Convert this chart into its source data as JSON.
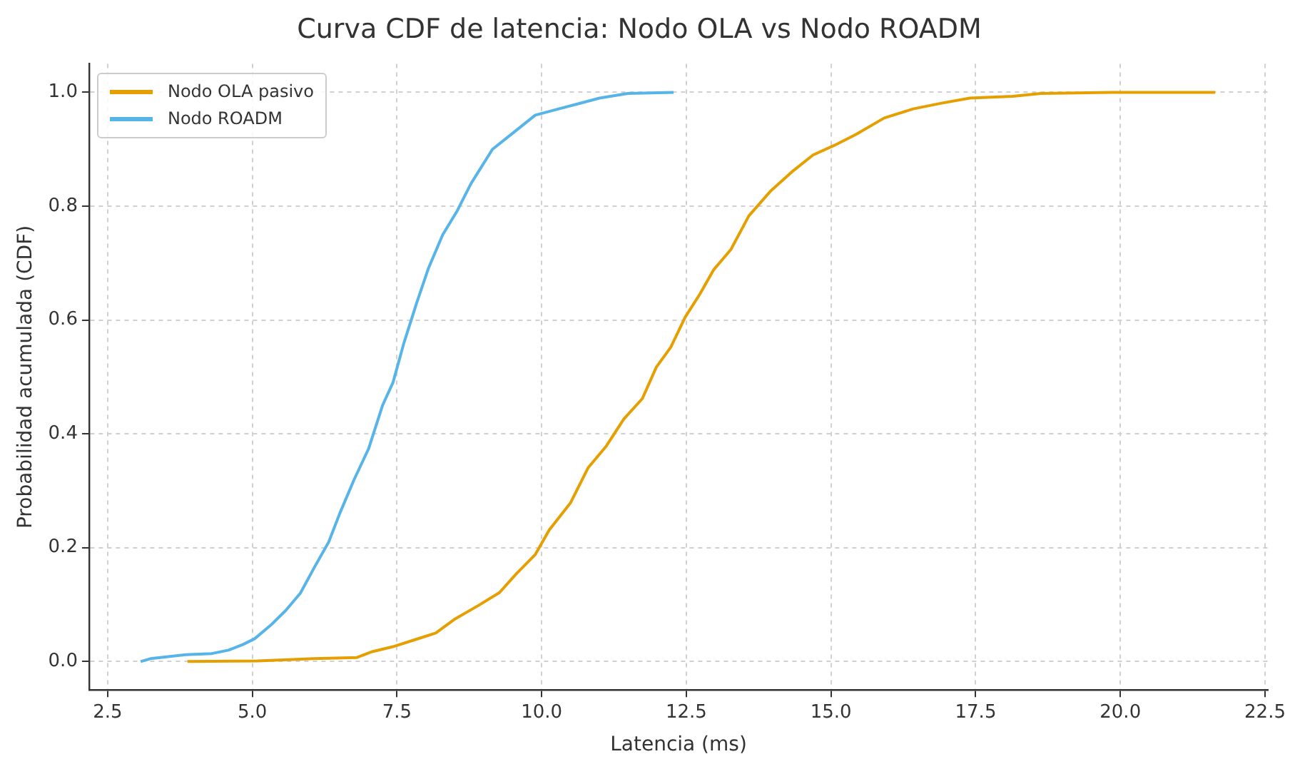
{
  "chart_data": {
    "type": "line",
    "title": "Curva CDF de latencia: Nodo OLA vs Nodo ROADM",
    "xlabel": "Latencia (ms)",
    "ylabel": "Probabilidad acumulada (CDF)",
    "xlim": [
      2.18,
      22.55
    ],
    "ylim": [
      -0.05,
      1.05
    ],
    "xticks": [
      {
        "value": 2.5,
        "label": "2.5"
      },
      {
        "value": 5,
        "label": "5.0"
      },
      {
        "value": 7.5,
        "label": "7.5"
      },
      {
        "value": 10,
        "label": "10.0"
      },
      {
        "value": 12.5,
        "label": "12.5"
      },
      {
        "value": 15,
        "label": "15.0"
      },
      {
        "value": 17.5,
        "label": "17.5"
      },
      {
        "value": 20,
        "label": "20.0"
      },
      {
        "value": 22.5,
        "label": "22.5"
      }
    ],
    "yticks": [
      {
        "value": 0,
        "label": "0.0"
      },
      {
        "value": 0.2,
        "label": "0.2"
      },
      {
        "value": 0.4,
        "label": "0.4"
      },
      {
        "value": 0.6,
        "label": "0.6"
      },
      {
        "value": 0.8,
        "label": "0.8"
      },
      {
        "value": 1,
        "label": "1.0"
      }
    ],
    "grid": true,
    "legend": "top left",
    "marker": "none",
    "line_style": "solid",
    "series": [
      {
        "name": "Nodo OLA pasivo",
        "color": "#e69f00",
        "x": [
          3.88,
          5.09,
          6.07,
          6.81,
          7.06,
          7.43,
          7.8,
          8.17,
          8.49,
          8.9,
          9.27,
          9.57,
          9.89,
          10.13,
          10.5,
          10.8,
          11.12,
          11.42,
          11.74,
          11.98,
          12.23,
          12.48,
          12.73,
          12.97,
          13.27,
          13.58,
          13.95,
          14.32,
          14.69,
          15.06,
          15.43,
          15.92,
          16.42,
          16.91,
          17.4,
          18.14,
          18.63,
          19.86,
          21.64
        ],
        "values": [
          0,
          0.001,
          0.005,
          0.007,
          0.017,
          0.026,
          0.038,
          0.05,
          0.074,
          0.098,
          0.121,
          0.155,
          0.188,
          0.231,
          0.279,
          0.34,
          0.379,
          0.426,
          0.462,
          0.517,
          0.552,
          0.605,
          0.645,
          0.688,
          0.724,
          0.783,
          0.826,
          0.86,
          0.89,
          0.907,
          0.926,
          0.955,
          0.971,
          0.981,
          0.99,
          0.993,
          0.998,
          1,
          1
        ]
      },
      {
        "name": "Nodo ROADM",
        "color": "#56b4e9",
        "x": [
          3.07,
          3.24,
          3.85,
          4.3,
          4.59,
          4.84,
          5.04,
          5.33,
          5.58,
          5.83,
          6.07,
          6.32,
          6.51,
          6.76,
          7.01,
          7.25,
          7.43,
          7.62,
          7.84,
          8.04,
          8.29,
          8.53,
          8.78,
          9.15,
          9.52,
          9.89,
          10.26,
          10.63,
          11.0,
          11.49,
          12.28
        ],
        "values": [
          0,
          0.005,
          0.012,
          0.014,
          0.02,
          0.03,
          0.04,
          0.065,
          0.09,
          0.12,
          0.165,
          0.21,
          0.26,
          0.32,
          0.374,
          0.45,
          0.49,
          0.56,
          0.63,
          0.69,
          0.75,
          0.79,
          0.84,
          0.9,
          0.93,
          0.96,
          0.97,
          0.98,
          0.99,
          0.998,
          1
        ]
      }
    ]
  }
}
